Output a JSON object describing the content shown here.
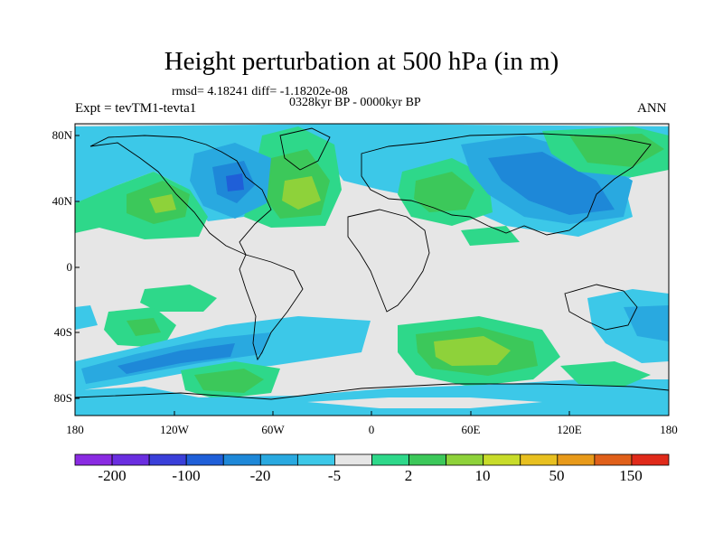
{
  "title": "Height perturbation at 500 hPa (in m)",
  "stats": "rmsd= 4.18241 diff= -1.18202e-08",
  "period": "0328kyr BP - 0000kyr BP",
  "experiment": "Expt = tevTM1-tevta1",
  "season": "ANN",
  "lat_labels": [
    "80N",
    "40N",
    "0",
    "40S",
    "80S"
  ],
  "lon_labels": [
    "180",
    "120W",
    "60W",
    "0",
    "60E",
    "120E",
    "180"
  ],
  "colorbar": {
    "labels": [
      "-200",
      "-100",
      "-20",
      "-5",
      "2",
      "10",
      "50",
      "150"
    ],
    "colors": [
      "#8a2be2",
      "#6a2ee0",
      "#3a3fd9",
      "#1f5fd8",
      "#1e88d8",
      "#29a9e0",
      "#3cc8e8",
      "#e6e6e6",
      "#2ed88a",
      "#3cc85a",
      "#8ed23a",
      "#c8dc2a",
      "#e8c020",
      "#e89a1a",
      "#e0601a",
      "#e02a1a"
    ]
  },
  "field_colors": {
    "background": "#e6e6e6",
    "neg_light": "#3cc8e8",
    "neg_mid": "#29a9e0",
    "neg_deep": "#1e88d8",
    "neg_core": "#1f5fd8",
    "pos_light": "#2ed88a",
    "pos_mid": "#3cc85a",
    "pos_core": "#8ed23a",
    "pos_peak": "#c8dc2a"
  }
}
